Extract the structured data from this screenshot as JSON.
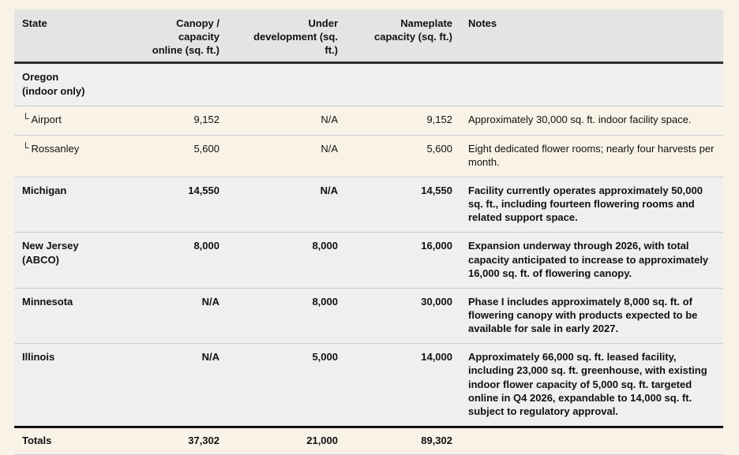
{
  "table": {
    "headers": {
      "state": "State",
      "canopy": "Canopy / capacity\nonline (sq. ft.)",
      "under_dev": "Under\ndevelopment (sq.\nft.)",
      "nameplate": "Nameplate\ncapacity (sq. ft.)",
      "notes": "Notes"
    },
    "rows": [
      {
        "state": "Oregon\n(indoor only)",
        "canopy": "",
        "under_dev": "",
        "nameplate": "",
        "notes": ""
      },
      {
        "prefix": "└",
        "state": "Airport",
        "canopy": "9,152",
        "under_dev": "N/A",
        "nameplate": "9,152",
        "notes": "Approximately 30,000 sq. ft. indoor facility space."
      },
      {
        "prefix": "└",
        "state": "Rossanley",
        "canopy": "5,600",
        "under_dev": "N/A",
        "nameplate": "5,600",
        "notes": "Eight dedicated flower rooms; nearly four harvests per month."
      },
      {
        "state": "Michigan",
        "canopy": "14,550",
        "under_dev": "N/A",
        "nameplate": "14,550",
        "notes": "Facility currently operates approximately 50,000 sq. ft., including fourteen flowering rooms and related support space."
      },
      {
        "state": "New Jersey\n(ABCO)",
        "canopy": "8,000",
        "under_dev": "8,000",
        "nameplate": "16,000",
        "notes": "Expansion underway through 2026, with total capacity anticipated to increase to approximately 16,000 sq. ft. of flowering canopy."
      },
      {
        "state": "Minnesota",
        "canopy": "N/A",
        "under_dev": "8,000",
        "nameplate": "30,000",
        "notes": "Phase I includes approximately 8,000 sq. ft. of flowering canopy with products expected to be available for sale in early 2027."
      },
      {
        "state": "Illinois",
        "canopy": "N/A",
        "under_dev": "5,000",
        "nameplate": "14,000",
        "notes": "Approximately 66,000 sq. ft. leased facility, including 23,000 sq. ft. greenhouse, with existing indoor flower capacity of 5,000 sq. ft. targeted online in Q4 2026, expandable to 14,000 sq. ft. subject to regulatory approval."
      }
    ],
    "totals": {
      "label": "Totals",
      "canopy": "37,302",
      "under_dev": "21,000",
      "nameplate": "89,302",
      "notes": ""
    }
  },
  "colors": {
    "page_background": "#f9f2e6",
    "header_background": "#e4e4e2",
    "section_row_background": "#f0efed",
    "divider": "#c9ced3",
    "strong_rule": "#2e2e2e"
  }
}
